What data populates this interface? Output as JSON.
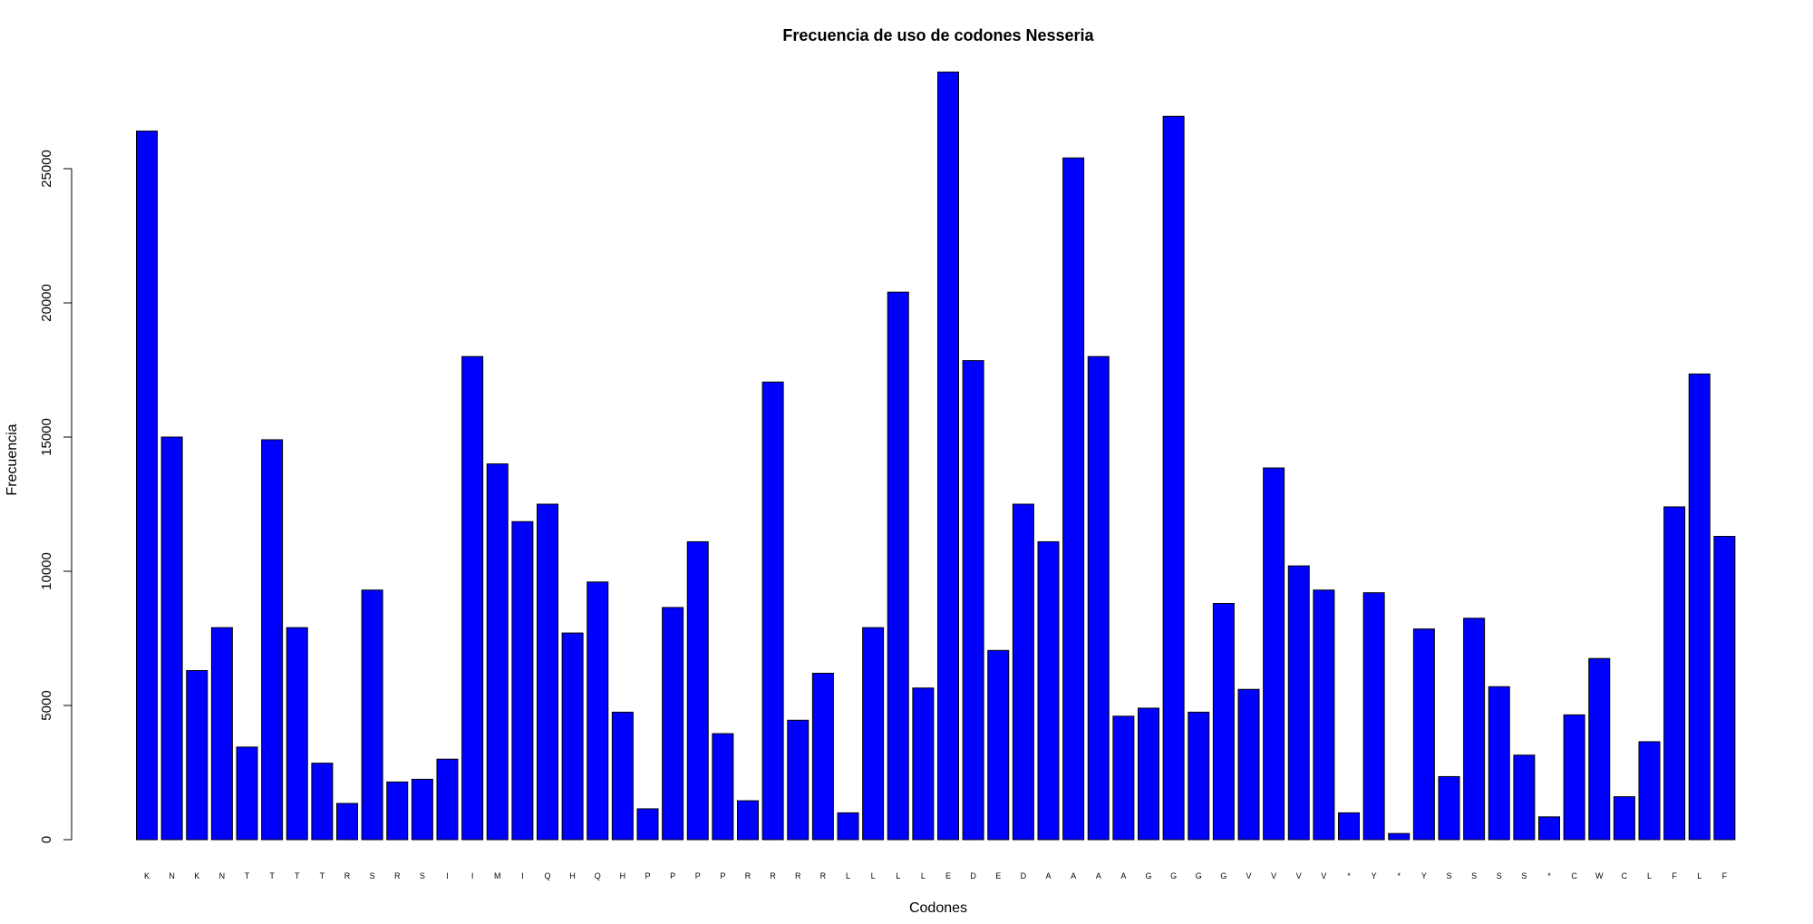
{
  "chart_data": {
    "type": "bar",
    "title": "Frecuencia de uso de codones Nesseria",
    "xlabel": "Codones",
    "ylabel": "Frecuencia",
    "ylim": [
      0,
      28700
    ],
    "yticks": [
      0,
      5000,
      10000,
      15000,
      20000,
      25000
    ],
    "bar_color": "#0000ff",
    "categories": [
      "K",
      "N",
      "K",
      "N",
      "T",
      "T",
      "T",
      "T",
      "R",
      "S",
      "R",
      "S",
      "I",
      "I",
      "M",
      "I",
      "Q",
      "H",
      "Q",
      "H",
      "P",
      "P",
      "P",
      "P",
      "R",
      "R",
      "R",
      "R",
      "L",
      "L",
      "L",
      "L",
      "E",
      "D",
      "E",
      "D",
      "A",
      "A",
      "A",
      "A",
      "G",
      "G",
      "G",
      "G",
      "V",
      "V",
      "V",
      "V",
      "*",
      "Y",
      "*",
      "Y",
      "S",
      "S",
      "S",
      "S",
      "*",
      "C",
      "W",
      "C",
      "L",
      "F",
      "L",
      "F"
    ],
    "values": [
      26400,
      15000,
      6300,
      7900,
      3450,
      14900,
      7900,
      2850,
      1350,
      9300,
      2150,
      2250,
      3000,
      18000,
      14000,
      11850,
      12500,
      7700,
      9600,
      4750,
      1150,
      8650,
      11100,
      3950,
      1450,
      17050,
      4450,
      6200,
      1000,
      7900,
      20400,
      5650,
      28600,
      17850,
      7050,
      12500,
      11100,
      25400,
      18000,
      4600,
      4900,
      26950,
      4750,
      8800,
      5600,
      13850,
      10200,
      9300,
      1000,
      9200,
      230,
      7850,
      2350,
      8250,
      5700,
      3150,
      850,
      4650,
      6750,
      1600,
      3650,
      12400,
      17350,
      11300
    ],
    "grid": false
  }
}
